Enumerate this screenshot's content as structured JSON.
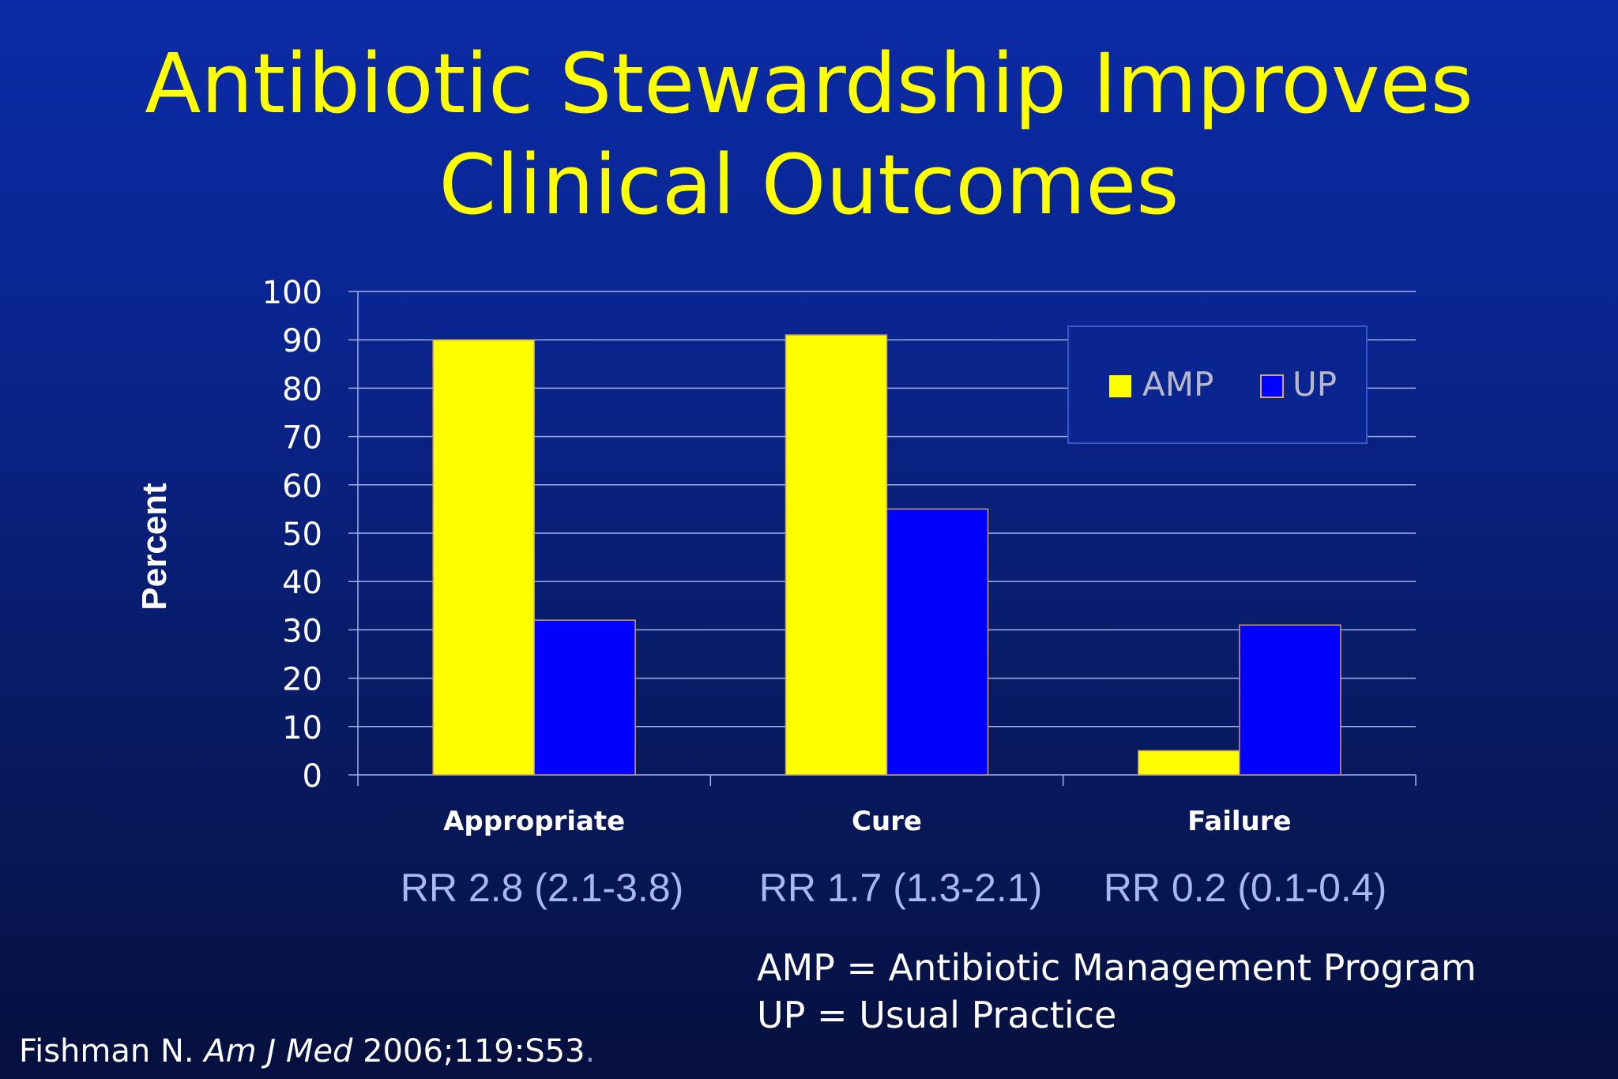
{
  "title_line1": "Antibiotic Stewardship Improves",
  "title_line2": "Clinical Outcomes",
  "chart_data": {
    "type": "bar",
    "categories": [
      "Appropriate",
      "Cure",
      "Failure"
    ],
    "series": [
      {
        "name": "AMP",
        "values": [
          90,
          91,
          5
        ],
        "color": "#ffff00"
      },
      {
        "name": "UP",
        "values": [
          32,
          55,
          31
        ],
        "color": "#0000ff"
      }
    ],
    "ylabel": "Percent",
    "xlabel": "",
    "ylim": [
      0,
      100
    ],
    "yticks": [
      0,
      10,
      20,
      30,
      40,
      50,
      60,
      70,
      80,
      90,
      100
    ],
    "grid": true,
    "legend_position": "top-right"
  },
  "rr_labels": [
    "RR 2.8 (2.1-3.8)",
    "RR 1.7 (1.3-2.1)",
    "RR 0.2 (0.1-0.4)"
  ],
  "definitions": {
    "amp": "AMP = Antibiotic Management Program",
    "up": "UP = Usual Practice"
  },
  "citation": {
    "author": "Fishman N.",
    "journal": "Am J Med",
    "ref": "2006;119:S53"
  }
}
